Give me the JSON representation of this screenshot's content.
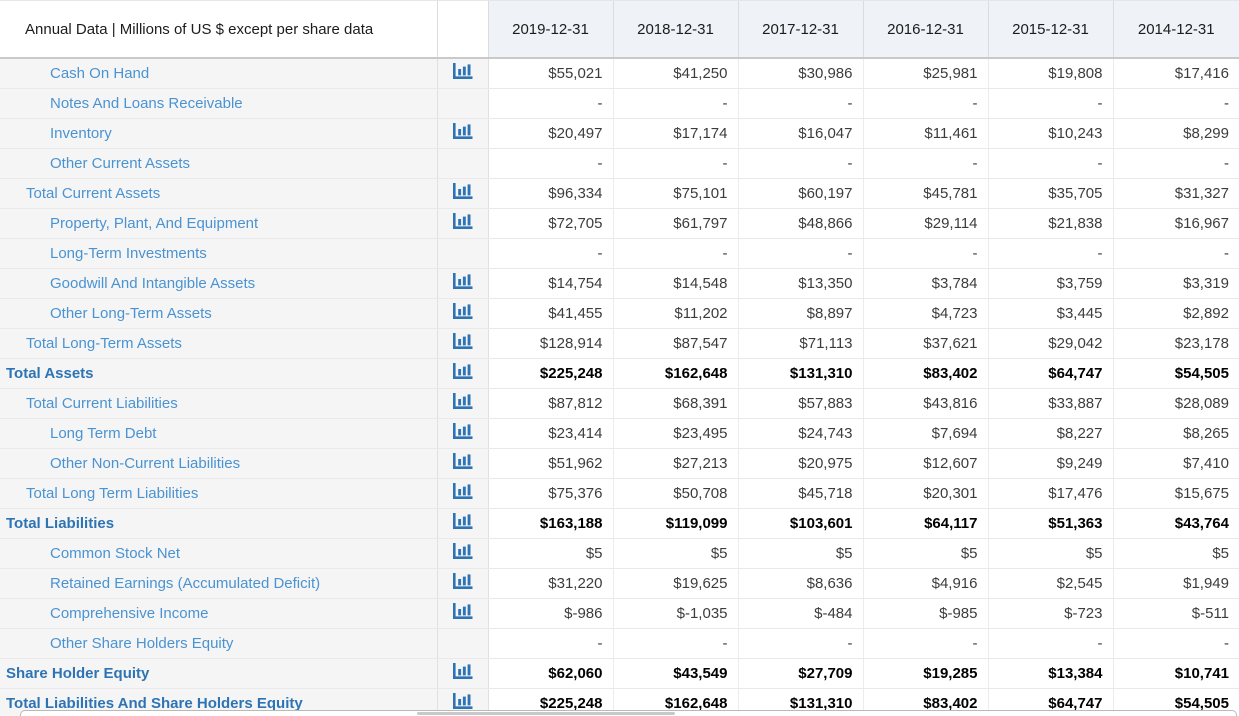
{
  "header": {
    "label": "Annual Data | Millions of US $ except per share data",
    "columns": [
      "2019-12-31",
      "2018-12-31",
      "2017-12-31",
      "2016-12-31",
      "2015-12-31",
      "2014-12-31"
    ]
  },
  "icons": {
    "row_chart_icon": "bar-chart-icon"
  },
  "colors": {
    "link_blue": "#4a93d2",
    "bold_link_blue": "#2e74b5",
    "icon_blue": "#2e74b5",
    "header_bg": "#eff2f7",
    "label_col_bg": "#f5f5f5",
    "grid_line": "#e9e9e9"
  },
  "rows": [
    {
      "label": "Cash On Hand",
      "indent": 2,
      "bold": false,
      "icon": true,
      "values": [
        "$55,021",
        "$41,250",
        "$30,986",
        "$25,981",
        "$19,808",
        "$17,416"
      ]
    },
    {
      "label": "Notes And Loans Receivable",
      "indent": 2,
      "bold": false,
      "icon": false,
      "values": [
        "-",
        "-",
        "-",
        "-",
        "-",
        "-"
      ]
    },
    {
      "label": "Inventory",
      "indent": 2,
      "bold": false,
      "icon": true,
      "values": [
        "$20,497",
        "$17,174",
        "$16,047",
        "$11,461",
        "$10,243",
        "$8,299"
      ]
    },
    {
      "label": "Other Current Assets",
      "indent": 2,
      "bold": false,
      "icon": false,
      "values": [
        "-",
        "-",
        "-",
        "-",
        "-",
        "-"
      ]
    },
    {
      "label": "Total Current Assets",
      "indent": 1,
      "bold": false,
      "icon": true,
      "values": [
        "$96,334",
        "$75,101",
        "$60,197",
        "$45,781",
        "$35,705",
        "$31,327"
      ]
    },
    {
      "label": "Property, Plant, And Equipment",
      "indent": 2,
      "bold": false,
      "icon": true,
      "values": [
        "$72,705",
        "$61,797",
        "$48,866",
        "$29,114",
        "$21,838",
        "$16,967"
      ]
    },
    {
      "label": "Long-Term Investments",
      "indent": 2,
      "bold": false,
      "icon": false,
      "values": [
        "-",
        "-",
        "-",
        "-",
        "-",
        "-"
      ]
    },
    {
      "label": "Goodwill And Intangible Assets",
      "indent": 2,
      "bold": false,
      "icon": true,
      "values": [
        "$14,754",
        "$14,548",
        "$13,350",
        "$3,784",
        "$3,759",
        "$3,319"
      ]
    },
    {
      "label": "Other Long-Term Assets",
      "indent": 2,
      "bold": false,
      "icon": true,
      "values": [
        "$41,455",
        "$11,202",
        "$8,897",
        "$4,723",
        "$3,445",
        "$2,892"
      ]
    },
    {
      "label": "Total Long-Term Assets",
      "indent": 1,
      "bold": false,
      "icon": true,
      "values": [
        "$128,914",
        "$87,547",
        "$71,113",
        "$37,621",
        "$29,042",
        "$23,178"
      ]
    },
    {
      "label": "Total Assets",
      "indent": 0,
      "bold": true,
      "icon": true,
      "values": [
        "$225,248",
        "$162,648",
        "$131,310",
        "$83,402",
        "$64,747",
        "$54,505"
      ]
    },
    {
      "label": "Total Current Liabilities",
      "indent": 1,
      "bold": false,
      "icon": true,
      "values": [
        "$87,812",
        "$68,391",
        "$57,883",
        "$43,816",
        "$33,887",
        "$28,089"
      ]
    },
    {
      "label": "Long Term Debt",
      "indent": 2,
      "bold": false,
      "icon": true,
      "values": [
        "$23,414",
        "$23,495",
        "$24,743",
        "$7,694",
        "$8,227",
        "$8,265"
      ]
    },
    {
      "label": "Other Non-Current Liabilities",
      "indent": 2,
      "bold": false,
      "icon": true,
      "values": [
        "$51,962",
        "$27,213",
        "$20,975",
        "$12,607",
        "$9,249",
        "$7,410"
      ]
    },
    {
      "label": "Total Long Term Liabilities",
      "indent": 1,
      "bold": false,
      "icon": true,
      "values": [
        "$75,376",
        "$50,708",
        "$45,718",
        "$20,301",
        "$17,476",
        "$15,675"
      ]
    },
    {
      "label": "Total Liabilities",
      "indent": 0,
      "bold": true,
      "icon": true,
      "values": [
        "$163,188",
        "$119,099",
        "$103,601",
        "$64,117",
        "$51,363",
        "$43,764"
      ]
    },
    {
      "label": "Common Stock Net",
      "indent": 2,
      "bold": false,
      "icon": true,
      "values": [
        "$5",
        "$5",
        "$5",
        "$5",
        "$5",
        "$5"
      ]
    },
    {
      "label": "Retained Earnings (Accumulated Deficit)",
      "indent": 2,
      "bold": false,
      "icon": true,
      "values": [
        "$31,220",
        "$19,625",
        "$8,636",
        "$4,916",
        "$2,545",
        "$1,949"
      ]
    },
    {
      "label": "Comprehensive Income",
      "indent": 2,
      "bold": false,
      "icon": true,
      "values": [
        "$-986",
        "$-1,035",
        "$-484",
        "$-985",
        "$-723",
        "$-511"
      ]
    },
    {
      "label": "Other Share Holders Equity",
      "indent": 2,
      "bold": false,
      "icon": false,
      "values": [
        "-",
        "-",
        "-",
        "-",
        "-",
        "-"
      ]
    },
    {
      "label": "Share Holder Equity",
      "indent": 0,
      "bold": true,
      "icon": true,
      "values": [
        "$62,060",
        "$43,549",
        "$27,709",
        "$19,285",
        "$13,384",
        "$10,741"
      ]
    },
    {
      "label": "Total Liabilities And Share Holders Equity",
      "indent": 0,
      "bold": true,
      "icon": true,
      "values": [
        "$225,248",
        "$162,648",
        "$131,310",
        "$83,402",
        "$64,747",
        "$54,505"
      ]
    }
  ]
}
